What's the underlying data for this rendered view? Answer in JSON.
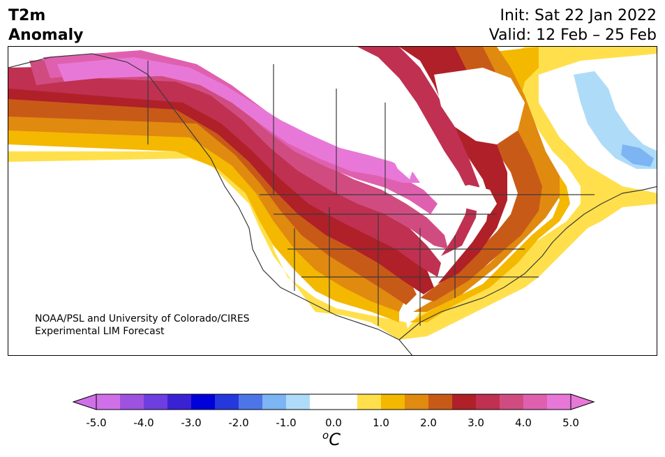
{
  "header": {
    "variable": "T2m",
    "field": "Anomaly",
    "init": "Init: Sat 22 Jan 2022",
    "valid": "Valid: 12 Feb – 25 Feb"
  },
  "credit": {
    "line1": "NOAA/PSL and University of Colorado/CIRES",
    "line2": "Experimental LIM Forecast"
  },
  "colorbar": {
    "unit": "C",
    "unit_prefix": "o",
    "ticks": [
      "-5.0",
      "-4.0",
      "-3.0",
      "-2.0",
      "-1.0",
      "0.0",
      "1.0",
      "2.0",
      "3.0",
      "4.0",
      "5.0"
    ],
    "min": -5.0,
    "max": 5.0,
    "step": 0.5,
    "colors": [
      "#d070e8",
      "#9e52e0",
      "#6e3ee0",
      "#3a22d4",
      "#0000d8",
      "#2638dc",
      "#4c76e8",
      "#7cb4f4",
      "#aedcf8",
      "#ffffff",
      "#ffffff",
      "#ffe04c",
      "#f4b800",
      "#e08a10",
      "#c85a18",
      "#b02028",
      "#c03050",
      "#d04c80",
      "#e060b0",
      "#e878d8"
    ]
  },
  "map": {
    "region": "North America",
    "colors": {
      "z0": "#ffe04c",
      "z1": "#f4b800",
      "z2": "#e08a10",
      "z3": "#c85a18",
      "z4": "#b02028",
      "z5": "#c03050",
      "z6": "#d04c80",
      "z7": "#e060b0",
      "z8": "#e878d8",
      "cool1": "#aedcf8",
      "cool2": "#7cb4f4",
      "line": "#3a3a3a"
    }
  }
}
